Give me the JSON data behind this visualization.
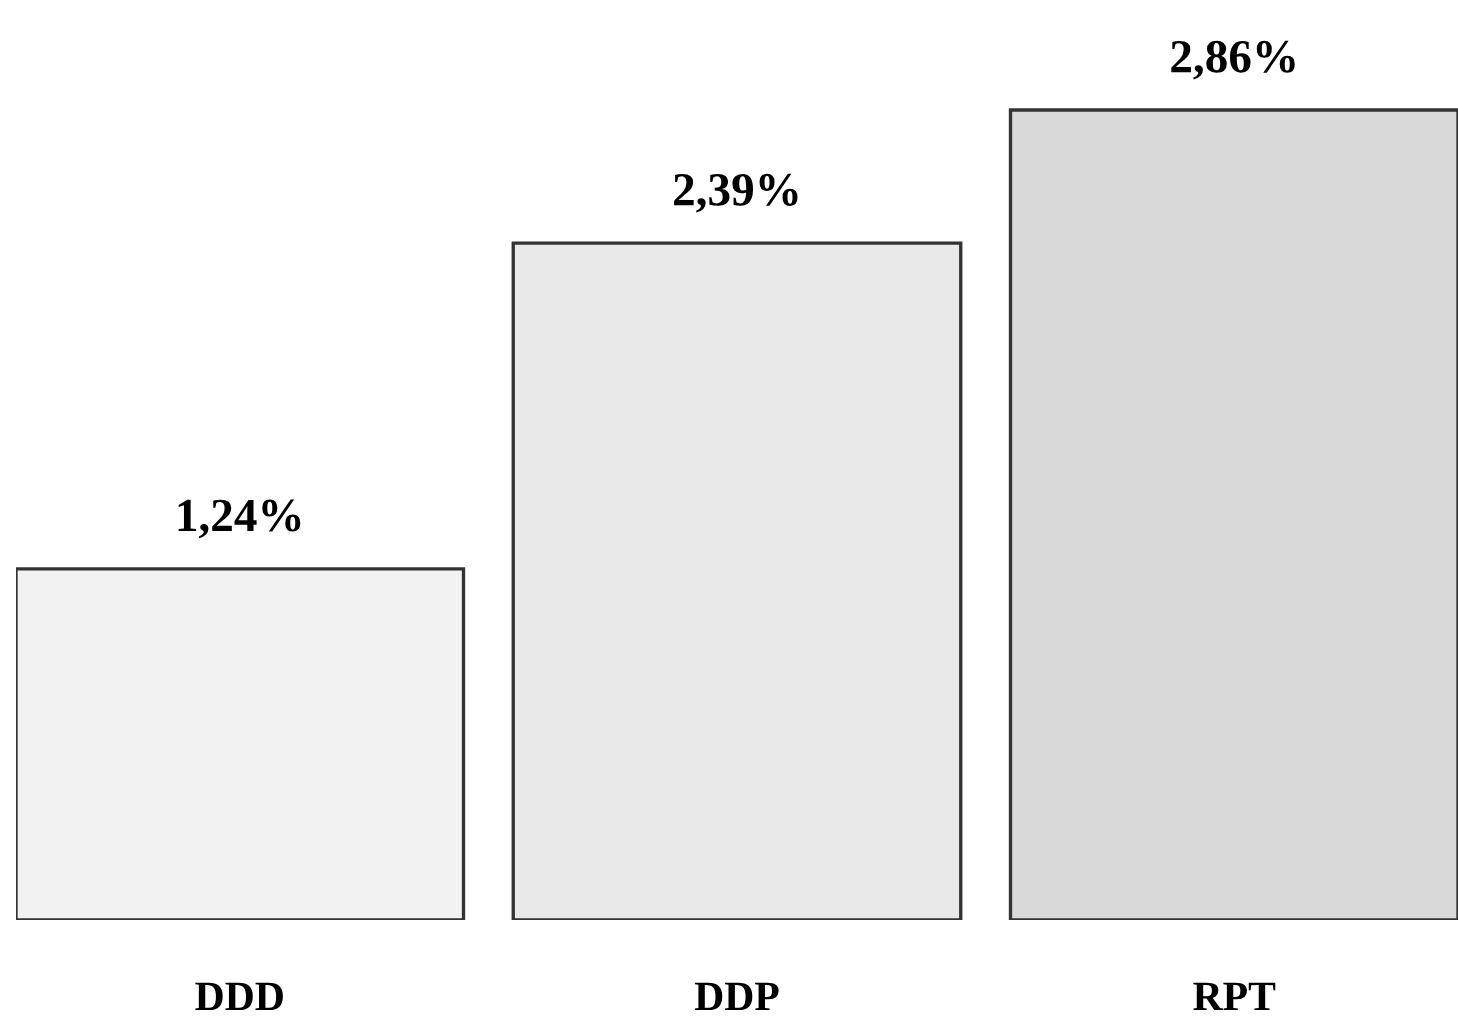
{
  "chart_data": {
    "type": "bar",
    "categories": [
      "DDD",
      "DDP",
      "RPT"
    ],
    "values": [
      1.24,
      2.39,
      2.86
    ],
    "value_labels": [
      "1,24%",
      "2,39%",
      "2,86%"
    ],
    "colors": [
      "#f2f2f2",
      "#e9e9e9",
      "#d9d9d9"
    ],
    "grid": false,
    "legend": false,
    "tick_labels": "x"
  }
}
